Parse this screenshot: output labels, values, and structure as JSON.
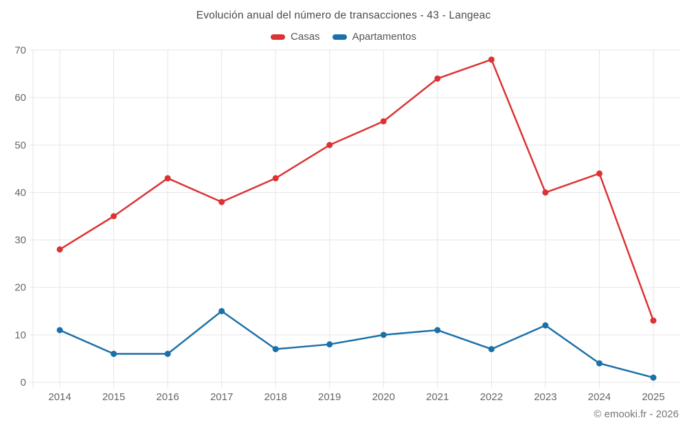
{
  "chart_data": {
    "type": "line",
    "title": "Evolución anual del número de transacciones - 43 - Langeac",
    "categories": [
      "2014",
      "2015",
      "2016",
      "2017",
      "2018",
      "2019",
      "2020",
      "2021",
      "2022",
      "2023",
      "2024",
      "2025"
    ],
    "series": [
      {
        "name": "Casas",
        "color": "#dc3232",
        "values": [
          28,
          35,
          43,
          38,
          43,
          50,
          55,
          64,
          68,
          40,
          44,
          13
        ]
      },
      {
        "name": "Apartamentos",
        "color": "#1a70a8",
        "values": [
          11,
          6,
          6,
          15,
          7,
          8,
          10,
          11,
          7,
          12,
          4,
          1
        ]
      }
    ],
    "xlabel": "",
    "ylabel": "",
    "ylim": [
      0,
      70
    ],
    "y_ticks": [
      0,
      10,
      20,
      30,
      40,
      50,
      60,
      70
    ],
    "grid": true,
    "legend_position": "top"
  },
  "footer": {
    "copyright": "© emooki.fr - 2026"
  },
  "colors": {
    "grid": "#e5e5e5",
    "axis_text": "#666666"
  }
}
